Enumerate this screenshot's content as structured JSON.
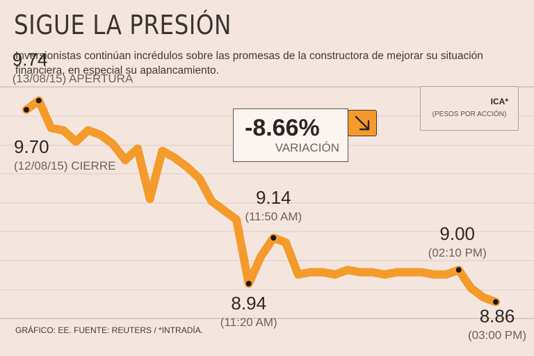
{
  "header": {
    "title": "SIGUE LA PRESIÓN",
    "subtitle": "Inversionistas continúan incrédulos sobre las promesas de la constructora de mejorar su situación financiera, en especial su apalancamiento."
  },
  "badge": {
    "ticker": "ICA*",
    "unit": "(PESOS POR ACCIÓN)"
  },
  "variation": {
    "value": "-8.66%",
    "label": "VARIACIÓN",
    "icon": "arrow-down-right-icon"
  },
  "footer": "GRÁFICO: EE. FUENTE: REUTERS / *INTRADÍA.",
  "colors": {
    "line": "#f49b2c",
    "background": "#f4e6df",
    "grid": "#d9cfc9",
    "marker": "#1b1816"
  },
  "chart_data": {
    "type": "line",
    "title": "SIGUE LA PRESIÓN",
    "ylabel": "Pesos por acción",
    "ylim": [
      8.8,
      9.76
    ],
    "series": [
      {
        "name": "ICA*",
        "values": [
          9.7,
          9.74,
          9.62,
          9.61,
          9.56,
          9.61,
          9.59,
          9.55,
          9.48,
          9.53,
          9.31,
          9.52,
          9.49,
          9.45,
          9.4,
          9.3,
          9.26,
          9.22,
          8.94,
          9.06,
          9.14,
          9.12,
          8.98,
          8.99,
          8.99,
          8.98,
          9.0,
          8.99,
          8.99,
          8.98,
          8.99,
          8.99,
          8.99,
          8.98,
          8.98,
          9.0,
          8.92,
          8.88,
          8.86
        ]
      }
    ],
    "labeled_points": [
      {
        "index": 0,
        "value": "9.70",
        "sub": "(12/08/15) CIERRE"
      },
      {
        "index": 1,
        "value": "9.74",
        "sub": "(13/08/15) APERTURA"
      },
      {
        "index": 18,
        "value": "8.94",
        "sub": "(11:20 AM)"
      },
      {
        "index": 20,
        "value": "9.14",
        "sub": "(11:50 AM)"
      },
      {
        "index": 35,
        "value": "9.00",
        "sub": "(02:10 PM)"
      },
      {
        "index": 38,
        "value": "8.86",
        "sub": "(03:00 PM)"
      }
    ],
    "grid": true
  }
}
